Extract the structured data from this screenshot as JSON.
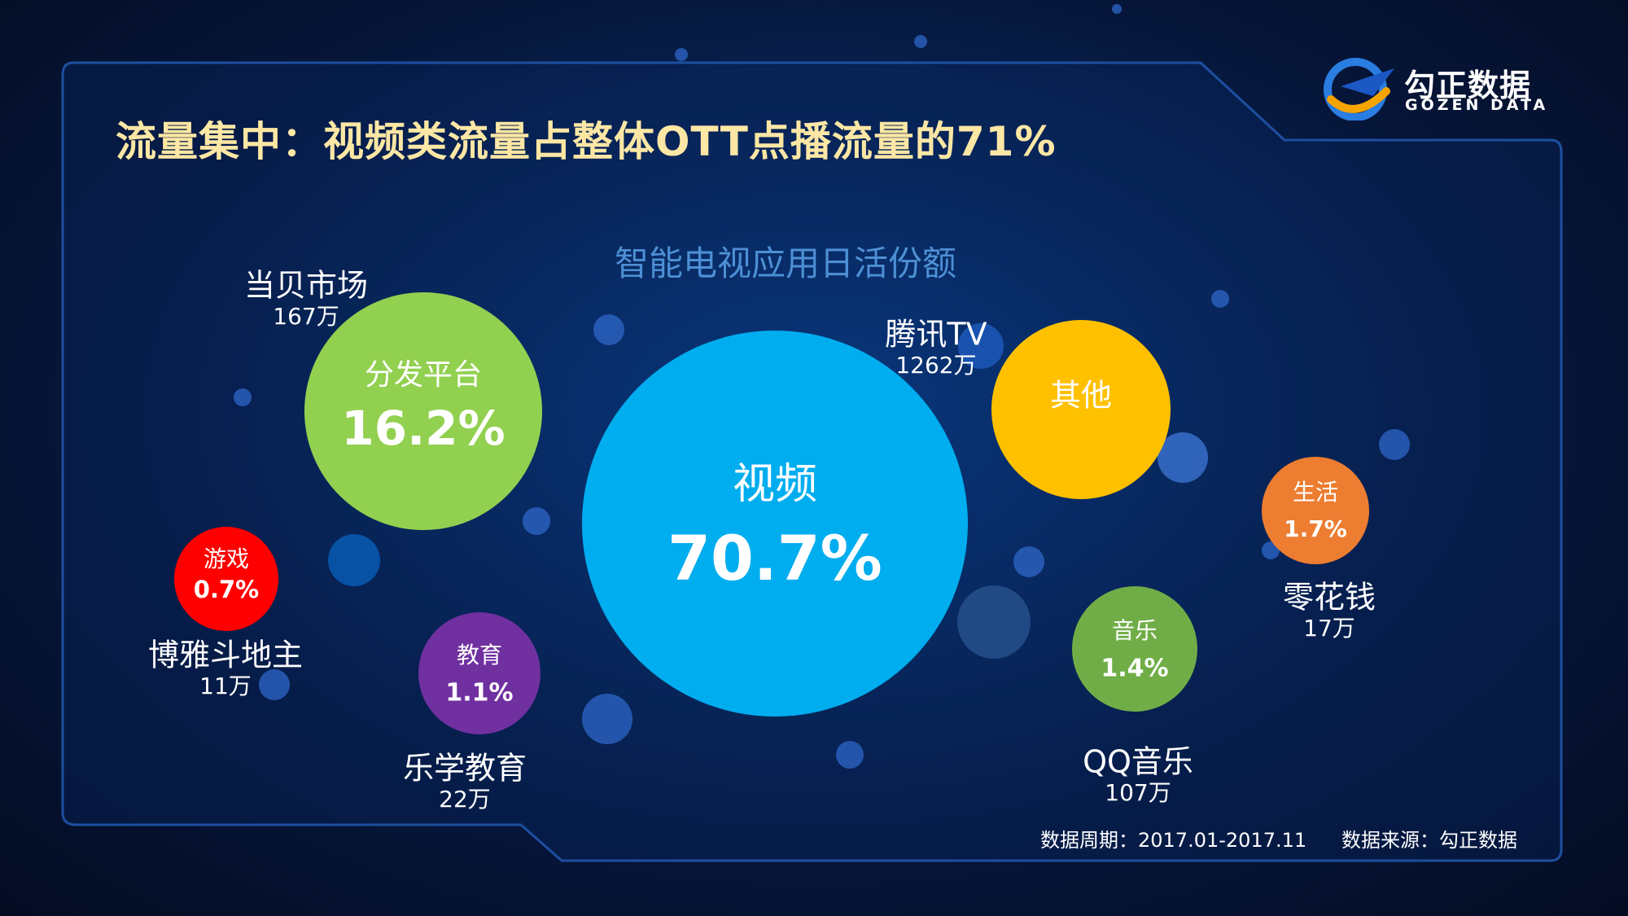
{
  "title": "流量集中：视频类流量占整体OTT点播流量的71%",
  "logo": {
    "cn": "勾正数据",
    "en": "GOZEN DATA"
  },
  "footer": {
    "period": "数据周期：2017.01-2017.11",
    "source": "数据来源：勾正数据"
  },
  "colors": {
    "background": "#06163a",
    "title": "#fde7a4",
    "chart_title": "#4d8fd4",
    "video": "#00adef",
    "distribution": "#92d050",
    "other": "#ffc000",
    "life": "#ed7d31",
    "music": "#70ad47",
    "education": "#7030a0",
    "game": "#ff0000"
  },
  "chart_data": {
    "type": "bubble",
    "title": "智能电视应用日活份额",
    "unit": "%",
    "categories": [
      {
        "name": "视频",
        "value": 70.7,
        "label": "70.7%",
        "color": "#00adef",
        "top_app": "腾讯TV",
        "top_app_dau": "1262万"
      },
      {
        "name": "分发平台",
        "value": 16.2,
        "label": "16.2%",
        "color": "#92d050",
        "top_app": "当贝市场",
        "top_app_dau": "167万"
      },
      {
        "name": "其他",
        "value": null,
        "label": "",
        "color": "#ffc000",
        "top_app": "",
        "top_app_dau": ""
      },
      {
        "name": "生活",
        "value": 1.7,
        "label": "1.7%",
        "color": "#ed7d31",
        "top_app": "零花钱",
        "top_app_dau": "17万"
      },
      {
        "name": "音乐",
        "value": 1.4,
        "label": "1.4%",
        "color": "#70ad47",
        "top_app": "QQ音乐",
        "top_app_dau": "107万"
      },
      {
        "name": "教育",
        "value": 1.1,
        "label": "1.1%",
        "color": "#7030a0",
        "top_app": "乐学教育",
        "top_app_dau": "22万"
      },
      {
        "name": "游戏",
        "value": 0.7,
        "label": "0.7%",
        "color": "#ff0000",
        "top_app": "博雅斗地主",
        "top_app_dau": "11万"
      }
    ]
  }
}
